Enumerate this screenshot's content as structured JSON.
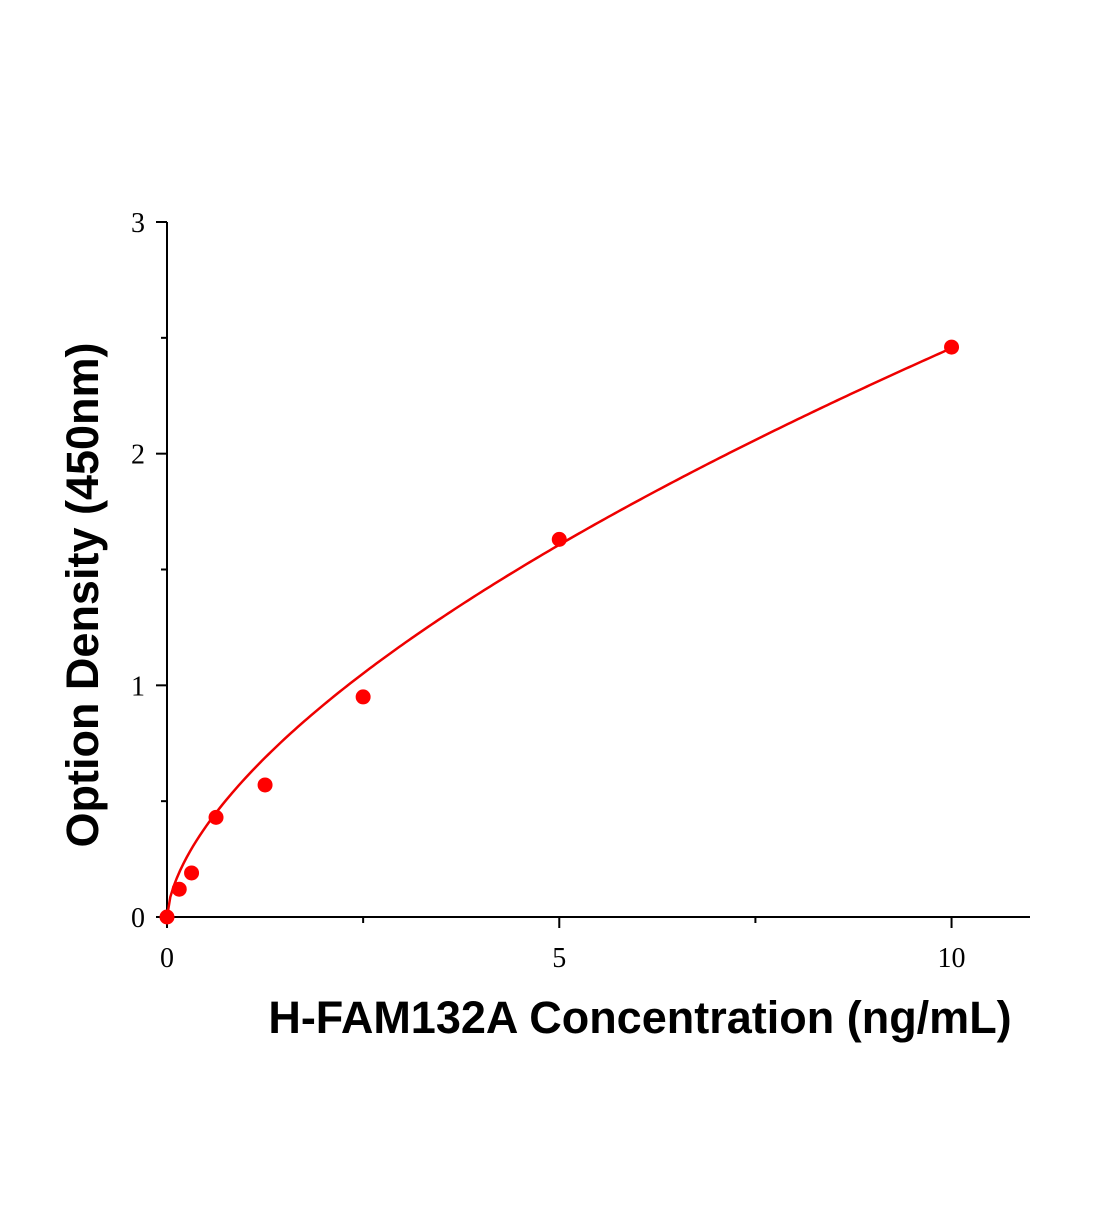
{
  "chart_data": {
    "type": "scatter",
    "title": "",
    "xlabel": "H-FAM132A Concentration (ng/mL)",
    "ylabel": "Option Density (450nm)",
    "xlim": [
      0,
      11
    ],
    "ylim": [
      0,
      3
    ],
    "x_ticks": [
      0,
      5,
      10
    ],
    "x_minor_ticks": [
      2.5,
      7.5
    ],
    "y_ticks": [
      0,
      1,
      2,
      3
    ],
    "y_minor_ticks": [
      0.5,
      1.5,
      2.5
    ],
    "grid": false,
    "legend": "none",
    "series": [
      {
        "marker_color": "#ff0000",
        "points": [
          {
            "x": 0,
            "y": 0.0
          },
          {
            "x": 0.156,
            "y": 0.12
          },
          {
            "x": 0.313,
            "y": 0.19
          },
          {
            "x": 0.625,
            "y": 0.43
          },
          {
            "x": 1.25,
            "y": 0.57
          },
          {
            "x": 2.5,
            "y": 0.95
          },
          {
            "x": 5,
            "y": 1.63
          },
          {
            "x": 10,
            "y": 2.46
          }
        ]
      }
    ],
    "fit_curve": {
      "model": "power",
      "color": "#ee0000",
      "a": 0.6,
      "b": 0.612,
      "x_range": [
        0,
        10
      ]
    }
  }
}
